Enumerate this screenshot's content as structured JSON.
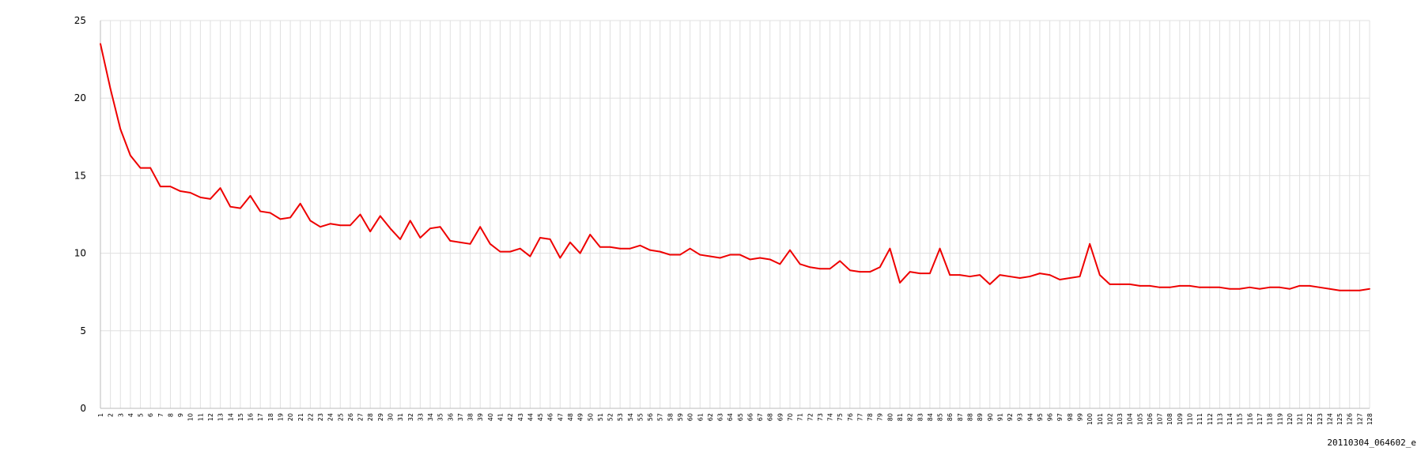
{
  "footer_label": "20110304_064602_e",
  "colors": {
    "line": "#ee0000",
    "grid": "#e0e0e0",
    "axis": "#bbbbbb"
  },
  "chart_data": {
    "type": "line",
    "grid": true,
    "legend": "none",
    "ylim": [
      0,
      25
    ],
    "yticks": [
      0,
      5,
      10,
      15,
      20,
      25
    ],
    "x": [
      1,
      2,
      3,
      4,
      5,
      6,
      7,
      8,
      9,
      10,
      11,
      12,
      13,
      14,
      15,
      16,
      17,
      18,
      19,
      20,
      21,
      22,
      23,
      24,
      25,
      26,
      27,
      28,
      29,
      30,
      31,
      32,
      33,
      34,
      35,
      36,
      37,
      38,
      39,
      40,
      41,
      42,
      43,
      44,
      45,
      46,
      47,
      48,
      49,
      50,
      51,
      52,
      53,
      54,
      55,
      56,
      57,
      58,
      59,
      60,
      61,
      62,
      63,
      64,
      65,
      66,
      67,
      68,
      69,
      70,
      71,
      72,
      73,
      74,
      75,
      76,
      77,
      78,
      79,
      80,
      81,
      82,
      83,
      84,
      85,
      86,
      87,
      88,
      89,
      90,
      91,
      92,
      93,
      94,
      95,
      96,
      97,
      98,
      99,
      100,
      101,
      102,
      103,
      104,
      105,
      106,
      107,
      108,
      109,
      110,
      111,
      112,
      113,
      114,
      115,
      116,
      117,
      118,
      119,
      120,
      121,
      122,
      123,
      124,
      125,
      126,
      127,
      128
    ],
    "series": [
      {
        "values": [
          23.5,
          20.6,
          18.0,
          16.3,
          15.5,
          15.5,
          14.3,
          14.3,
          14.0,
          13.9,
          13.6,
          13.5,
          14.2,
          13.0,
          12.9,
          13.7,
          12.7,
          12.6,
          12.2,
          12.3,
          13.2,
          12.1,
          11.7,
          11.9,
          11.8,
          11.8,
          12.5,
          11.4,
          12.4,
          11.6,
          10.9,
          12.1,
          11.0,
          11.6,
          11.7,
          10.8,
          10.7,
          10.6,
          11.7,
          10.6,
          10.1,
          10.1,
          10.3,
          9.8,
          11.0,
          10.9,
          9.7,
          10.7,
          10.0,
          11.2,
          10.4,
          10.4,
          10.3,
          10.3,
          10.5,
          10.2,
          10.1,
          9.9,
          9.9,
          10.3,
          9.9,
          9.8,
          9.7,
          9.9,
          9.9,
          9.6,
          9.7,
          9.6,
          9.3,
          10.2,
          9.3,
          9.1,
          9.0,
          9.0,
          9.5,
          8.9,
          8.8,
          8.8,
          9.1,
          10.3,
          8.1,
          8.8,
          8.7,
          8.7,
          10.3,
          8.6,
          8.6,
          8.5,
          8.6,
          8.0,
          8.6,
          8.5,
          8.4,
          8.5,
          8.7,
          8.6,
          8.3,
          8.4,
          8.5,
          10.6,
          8.6,
          8.0,
          8.0,
          8.0,
          7.9,
          7.9,
          7.8,
          7.8,
          7.9,
          7.9,
          7.8,
          7.8,
          7.8,
          7.7,
          7.7,
          7.8,
          7.7,
          7.8,
          7.8,
          7.7,
          7.9,
          7.9,
          7.8,
          7.7,
          7.6,
          7.6,
          7.6,
          7.7
        ]
      }
    ]
  }
}
